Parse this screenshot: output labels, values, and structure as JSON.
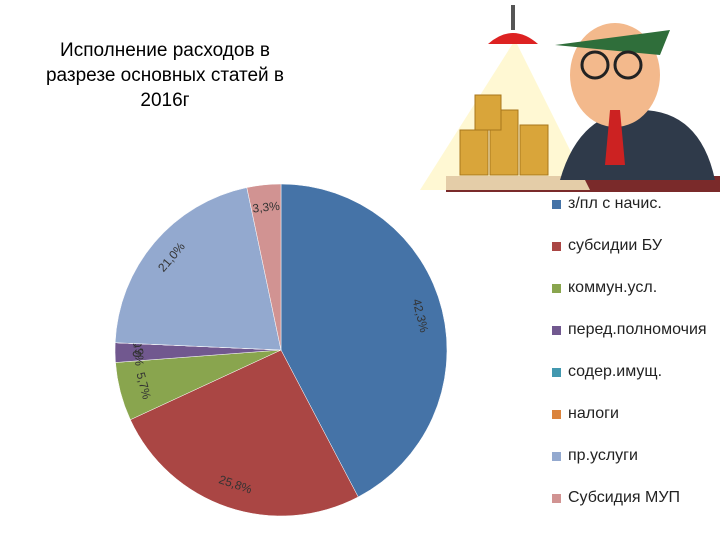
{
  "chart_data": {
    "type": "pie",
    "title": "Исполнение расходов в разрезе основных статей в 2016г",
    "series": [
      {
        "name": "з/пл с начис.",
        "color": "#4573a7",
        "values": [
          42.3
        ],
        "value_labels": [
          "42,3%"
        ]
      },
      {
        "name": "субсидии БУ",
        "color": "#aa4644",
        "values": [
          25.8
        ],
        "value_labels": [
          "25,8%"
        ]
      },
      {
        "name": "коммун.усл.",
        "color": "#89a54e",
        "values": [
          5.7
        ],
        "value_labels": [
          "5,7%"
        ]
      },
      {
        "name": "перед.полномочия",
        "color": "#71588f",
        "values": [
          1.9
        ],
        "value_labels": [
          "1,9%"
        ]
      },
      {
        "name": "содер.имущ.",
        "color": "#4298af",
        "values": [
          0.0
        ],
        "value_labels": [
          "0,0%"
        ]
      },
      {
        "name": "налоги",
        "color": "#db843d",
        "values": [
          0.0
        ],
        "value_labels": [
          "0,0%"
        ]
      },
      {
        "name": "пр.услуги",
        "color": "#93a9cf",
        "values": [
          21.0
        ],
        "value_labels": [
          "21,0%"
        ]
      },
      {
        "name": "Субсидия МУП",
        "color": "#d19392",
        "values": [
          3.3
        ],
        "value_labels": [
          "3,3%"
        ]
      }
    ],
    "legend": "right"
  }
}
